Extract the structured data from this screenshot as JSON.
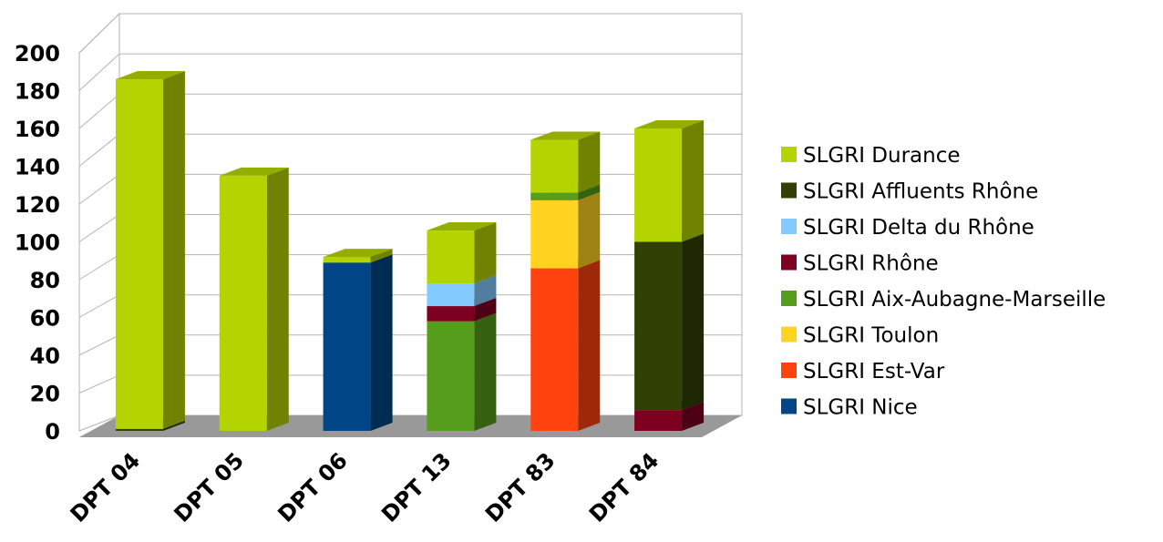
{
  "chart_data": {
    "type": "bar",
    "stacked": true,
    "three_d": true,
    "categories": [
      "DPT 04",
      "DPT 05",
      "DPT 06",
      "DPT 13",
      "DPT 83",
      "DPT 84"
    ],
    "series": [
      {
        "name": "SLGRI Nice",
        "color": "#004586",
        "values": [
          0,
          0,
          89,
          0,
          0,
          0
        ]
      },
      {
        "name": "SLGRI Est-Var",
        "color": "#ff420e",
        "values": [
          0,
          0,
          0,
          0,
          86,
          0
        ]
      },
      {
        "name": "SLGRI Toulon",
        "color": "#ffd320",
        "values": [
          0,
          0,
          0,
          0,
          36,
          0
        ]
      },
      {
        "name": "SLGRI Aix-Aubagne-Marseille",
        "color": "#579d1c",
        "values": [
          0,
          0,
          0,
          58,
          4,
          0
        ]
      },
      {
        "name": "SLGRI Rhône",
        "color": "#7e0021",
        "values": [
          0,
          0,
          0,
          8,
          0,
          11
        ]
      },
      {
        "name": "SLGRI Delta du Rhône",
        "color": "#83caff",
        "values": [
          0,
          0,
          0,
          12,
          0,
          0
        ]
      },
      {
        "name": "SLGRI Affluents Rhône",
        "color": "#314004",
        "values": [
          1,
          0,
          0,
          0,
          0,
          89
        ]
      },
      {
        "name": "SLGRI Durance",
        "color": "#b4d400",
        "values": [
          185,
          135,
          3,
          28,
          28,
          60
        ]
      }
    ],
    "ylim": [
      0,
      200
    ],
    "yticks": [
      "0",
      "20",
      "40",
      "60",
      "80",
      "100",
      "120",
      "140",
      "160",
      "180",
      "200"
    ],
    "grid": true,
    "legend_position": "right",
    "legend_order": [
      "SLGRI Durance",
      "SLGRI Affluents Rhône",
      "SLGRI Delta du Rhône",
      "SLGRI Rhône",
      "SLGRI Aix-Aubagne-Marseille",
      "SLGRI Toulon",
      "SLGRI Est-Var",
      "SLGRI Nice"
    ]
  }
}
